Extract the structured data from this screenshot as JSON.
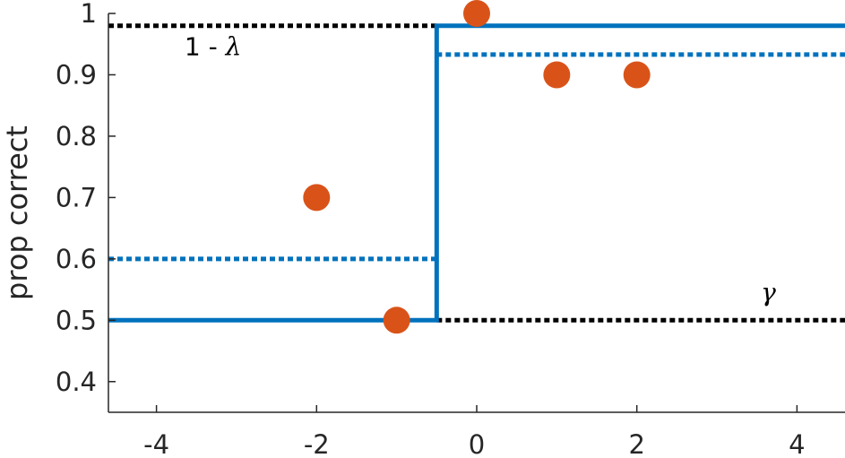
{
  "chart_data": {
    "type": "scatter",
    "ylabel": "prop correct",
    "xlabel": "",
    "xlim": [
      -4.6,
      4.6
    ],
    "ylim": [
      0.35,
      1.0
    ],
    "xticks": [
      -4,
      -2,
      0,
      2,
      4
    ],
    "yticks": [
      0.4,
      0.5,
      0.6,
      0.7,
      0.8,
      0.9,
      1.0
    ],
    "xtick_labels": [
      "-4",
      "-2",
      "0",
      "2",
      "4"
    ],
    "ytick_labels": [
      "0.4",
      "0.5",
      "0.6",
      "0.7",
      "0.8",
      "0.9",
      "1"
    ],
    "grid": false,
    "points": [
      {
        "x": -2,
        "y": 0.7
      },
      {
        "x": -1,
        "y": 0.5
      },
      {
        "x": 0,
        "y": 1.0
      },
      {
        "x": 1,
        "y": 0.9
      },
      {
        "x": 2,
        "y": 0.9
      }
    ],
    "step_solid": {
      "threshold": -0.5,
      "low": 0.5,
      "high": 0.98
    },
    "step_dotted": {
      "threshold": -0.5,
      "low": 0.6,
      "high": 0.933
    },
    "guide_lapse": {
      "y": 0.98,
      "x_from": -4.6,
      "x_to": -0.5
    },
    "guide_guess": {
      "y": 0.5,
      "x_from": -0.5,
      "x_to": 4.6
    },
    "colors": {
      "model": "#0072BD",
      "data": "#D95319",
      "guide": "#000000",
      "axis": "#262626"
    }
  },
  "annotations": {
    "lapse_prefix": "1 - ",
    "lapse_symbol": "λ",
    "guess_symbol": "γ"
  }
}
